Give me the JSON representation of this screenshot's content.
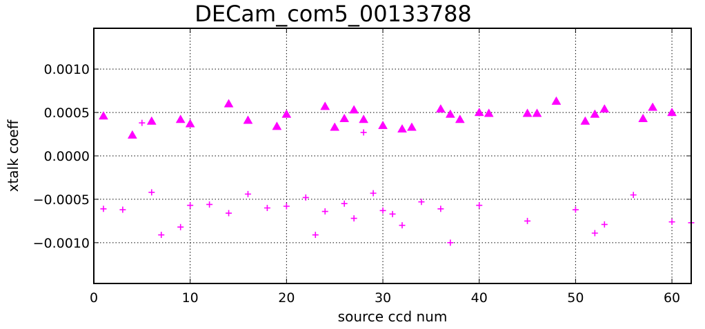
{
  "chart_data": {
    "type": "scatter",
    "title": "DECam_com5_00133788",
    "xlabel": "source ccd num",
    "ylabel": "xtalk coeff",
    "xlim": [
      0,
      62
    ],
    "ylim": [
      -0.00147,
      0.00147
    ],
    "grid": true,
    "x_ticks": [
      0,
      10,
      20,
      30,
      40,
      50,
      60
    ],
    "x_tick_labels": [
      "0",
      "10",
      "20",
      "30",
      "40",
      "50",
      "60"
    ],
    "y_ticks": [
      0.001,
      0.0005,
      0.0,
      -0.0005,
      -0.001
    ],
    "y_tick_labels": [
      "0.0010",
      "0.0005",
      "0.0000",
      "−0.0005",
      "−0.0010"
    ],
    "series": [
      {
        "marker": "triangle",
        "color": "#ff00ff",
        "points": [
          [
            1,
            0.00046
          ],
          [
            4,
            0.00024
          ],
          [
            6,
            0.0004
          ],
          [
            9,
            0.00042
          ],
          [
            10,
            0.00037
          ],
          [
            14,
            0.0006
          ],
          [
            16,
            0.00041
          ],
          [
            19,
            0.00034
          ],
          [
            20,
            0.00048
          ],
          [
            24,
            0.00057
          ],
          [
            25,
            0.00033
          ],
          [
            26,
            0.00043
          ],
          [
            27,
            0.00053
          ],
          [
            28,
            0.00042
          ],
          [
            30,
            0.00035
          ],
          [
            32,
            0.00031
          ],
          [
            33,
            0.00033
          ],
          [
            36,
            0.00054
          ],
          [
            37,
            0.00048
          ],
          [
            38,
            0.00042
          ],
          [
            40,
            0.0005
          ],
          [
            41,
            0.00049
          ],
          [
            45,
            0.00049
          ],
          [
            46,
            0.00049
          ],
          [
            48,
            0.00063
          ],
          [
            51,
            0.0004
          ],
          [
            52,
            0.00048
          ],
          [
            53,
            0.00054
          ],
          [
            57,
            0.00043
          ],
          [
            58,
            0.00056
          ],
          [
            60,
            0.0005
          ]
        ]
      },
      {
        "marker": "plus",
        "color": "#ff00ff",
        "points": [
          [
            1,
            -0.00061
          ],
          [
            3,
            -0.00062
          ],
          [
            5,
            0.00038
          ],
          [
            6,
            -0.00042
          ],
          [
            7,
            -0.00091
          ],
          [
            9,
            -0.00082
          ],
          [
            10,
            -0.00057
          ],
          [
            12,
            -0.00056
          ],
          [
            14,
            -0.00066
          ],
          [
            16,
            -0.00044
          ],
          [
            18,
            -0.0006
          ],
          [
            20,
            -0.00058
          ],
          [
            22,
            -0.00048
          ],
          [
            23,
            -0.00091
          ],
          [
            24,
            -0.00064
          ],
          [
            26,
            -0.00055
          ],
          [
            27,
            -0.00072
          ],
          [
            28,
            0.00027
          ],
          [
            29,
            -0.00043
          ],
          [
            30,
            -0.00063
          ],
          [
            31,
            -0.00067
          ],
          [
            32,
            -0.0008
          ],
          [
            34,
            -0.00053
          ],
          [
            36,
            -0.00061
          ],
          [
            37,
            -0.001
          ],
          [
            40,
            -0.00057
          ],
          [
            45,
            -0.00075
          ],
          [
            50,
            -0.00062
          ],
          [
            52,
            -0.00089
          ],
          [
            53,
            -0.00079
          ],
          [
            56,
            -0.00045
          ],
          [
            60,
            -0.00076
          ],
          [
            62,
            -0.00077
          ]
        ]
      }
    ]
  }
}
